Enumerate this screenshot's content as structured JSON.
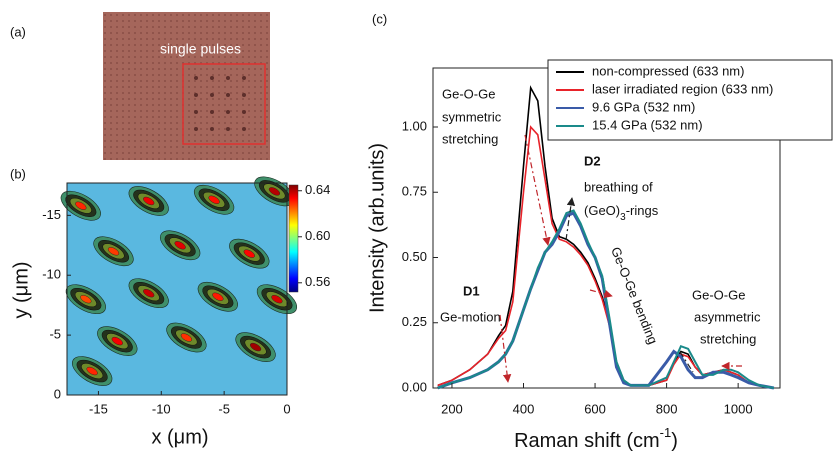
{
  "figure": {
    "panel_a": {
      "label": "(a)",
      "annotation": "single pulses"
    }
  },
  "chart_data": [
    {
      "type": "contour",
      "label": "(b)",
      "xlabel": "x (μm)",
      "ylabel": "y (μm)",
      "xlim": [
        -17.5,
        0
      ],
      "xticks": [
        -15,
        -10,
        -5,
        0
      ],
      "ylim": [
        -17.7,
        0
      ],
      "y_inverted": true,
      "yticks": [
        -15,
        -10,
        -5,
        0
      ],
      "clim": [
        0.552,
        0.645
      ],
      "cticks": [
        0.56,
        {
          "value": 0.6,
          "label": "0.60"
        },
        0.64
      ],
      "spots": {
        "x": [
          -16.4,
          -11.0,
          -5.8,
          -1.0,
          -13.8,
          -8.5,
          -3.0,
          -16.0,
          -11.0,
          -5.5,
          -0.8,
          -13.5,
          -8.0,
          -2.5,
          -15.5
        ],
        "y": [
          -15.8,
          -16.2,
          -16.3,
          -17.0,
          -12.0,
          -12.5,
          -11.8,
          -8.0,
          -8.5,
          -8.2,
          -8.0,
          -4.5,
          -4.8,
          -4.0,
          -2.0
        ],
        "values": [
          0.63,
          0.635,
          0.632,
          0.64,
          0.628,
          0.636,
          0.633,
          0.627,
          0.638,
          0.631,
          0.637,
          0.634,
          0.629,
          0.642,
          0.63
        ]
      }
    },
    {
      "type": "line",
      "label": "(c)",
      "ylabel": "Intensity (arb.units)",
      "xlabel": [
        "Raman shift  (cm",
        "-1",
        ")"
      ],
      "xlim": [
        147,
        1117
      ],
      "xticks": [
        200,
        400,
        600,
        800,
        1000
      ],
      "ylim": [
        0,
        1.226
      ],
      "yticks": [
        {
          "value": 0,
          "label": "0.00"
        },
        {
          "value": 0.25,
          "label": "0.25"
        },
        {
          "value": 0.5,
          "label": "0.50"
        },
        {
          "value": 0.75,
          "label": "0.75"
        },
        {
          "value": 1,
          "label": "1.00"
        }
      ],
      "x": [
        160,
        200,
        250,
        300,
        330,
        350,
        370,
        400,
        420,
        440,
        460,
        480,
        500,
        520,
        540,
        560,
        580,
        600,
        620,
        640,
        660,
        680,
        700,
        750,
        800,
        820,
        840,
        860,
        880,
        900,
        930,
        960,
        980,
        1000,
        1030,
        1060,
        1100
      ],
      "series": [
        {
          "name": "non-compressed  (633 nm)",
          "color": "#000000",
          "values": [
            0.01,
            0.03,
            0.07,
            0.13,
            0.2,
            0.24,
            0.37,
            0.85,
            1.15,
            1.1,
            0.85,
            0.65,
            0.58,
            0.57,
            0.55,
            0.52,
            0.48,
            0.42,
            0.35,
            0.25,
            0.1,
            0.03,
            0.01,
            0.01,
            0.03,
            0.1,
            0.14,
            0.13,
            0.08,
            0.05,
            0.06,
            0.07,
            0.06,
            0.05,
            0.02,
            0.01,
            0
          ]
        },
        {
          "name": "laser irradiated region  (633 nm)",
          "color": "#e8232a",
          "values": [
            0.01,
            0.03,
            0.07,
            0.13,
            0.19,
            0.22,
            0.33,
            0.75,
            1.0,
            0.97,
            0.8,
            0.63,
            0.57,
            0.56,
            0.54,
            0.51,
            0.47,
            0.41,
            0.34,
            0.24,
            0.1,
            0.03,
            0.01,
            0.01,
            0.03,
            0.09,
            0.13,
            0.12,
            0.08,
            0.05,
            0.06,
            0.07,
            0.06,
            0.05,
            0.02,
            0.01,
            0
          ]
        },
        {
          "name": "9.6 GPa (532 nm)",
          "color": "#3a5ba8",
          "values": [
            0,
            0.02,
            0.04,
            0.07,
            0.1,
            0.13,
            0.18,
            0.3,
            0.38,
            0.45,
            0.52,
            0.55,
            0.6,
            0.66,
            0.67,
            0.62,
            0.55,
            0.5,
            0.42,
            0.25,
            0.08,
            0.02,
            0.01,
            0.01,
            0.1,
            0.14,
            0.12,
            0.07,
            0.04,
            0.04,
            0.06,
            0.06,
            0.05,
            0.04,
            0.02,
            0.01,
            0
          ]
        },
        {
          "name": "15.4 GPa  (532 nm)",
          "color": "#1a8a8a",
          "values": [
            0,
            0.02,
            0.04,
            0.07,
            0.1,
            0.13,
            0.18,
            0.3,
            0.38,
            0.46,
            0.52,
            0.56,
            0.61,
            0.67,
            0.68,
            0.63,
            0.56,
            0.5,
            0.43,
            0.27,
            0.1,
            0.03,
            0.01,
            0.01,
            0.04,
            0.1,
            0.16,
            0.15,
            0.1,
            0.05,
            0.05,
            0.07,
            0.07,
            0.06,
            0.03,
            0.01,
            0
          ]
        }
      ],
      "annotations": {
        "symmetric": [
          "Ge-O-Ge",
          "symmetric",
          "stretching"
        ],
        "d2": "D2",
        "breathing": "breathing of",
        "rings": [
          "(GeO)",
          "3",
          "-rings"
        ],
        "d1": "D1",
        "ge_motion": "Ge-motion",
        "bending": "Ge-O-Ge bending",
        "asymmetric": [
          "Ge-O-Ge",
          "asymmetric",
          "stretching"
        ]
      }
    }
  ]
}
